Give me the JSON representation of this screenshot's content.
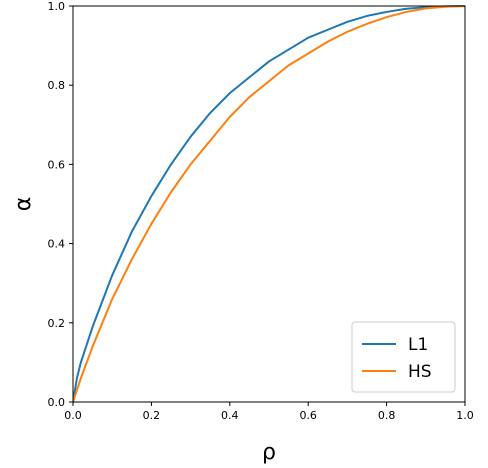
{
  "chart_data": {
    "type": "line",
    "title": "",
    "xlabel": "ρ",
    "ylabel": "α",
    "xlim": [
      0.0,
      1.0
    ],
    "ylim": [
      0.0,
      1.0
    ],
    "x_ticks": [
      "0.0",
      "0.2",
      "0.4",
      "0.6",
      "0.8",
      "1.0"
    ],
    "y_ticks": [
      "0.0",
      "0.2",
      "0.4",
      "0.6",
      "0.8",
      "1.0"
    ],
    "grid": false,
    "legend_position": "bottom-right",
    "series": [
      {
        "name": "L1",
        "color": "#1f77b4",
        "x": [
          0.0,
          0.01,
          0.02,
          0.05,
          0.1,
          0.15,
          0.2,
          0.25,
          0.3,
          0.35,
          0.4,
          0.45,
          0.5,
          0.55,
          0.6,
          0.65,
          0.7,
          0.75,
          0.8,
          0.85,
          0.9,
          0.95,
          1.0
        ],
        "y": [
          0.0,
          0.06,
          0.1,
          0.19,
          0.32,
          0.43,
          0.52,
          0.6,
          0.67,
          0.73,
          0.78,
          0.82,
          0.86,
          0.89,
          0.92,
          0.94,
          0.96,
          0.975,
          0.985,
          0.993,
          0.997,
          0.999,
          1.0
        ]
      },
      {
        "name": "HS",
        "color": "#ff7f0e",
        "x": [
          0.0,
          0.01,
          0.02,
          0.05,
          0.1,
          0.15,
          0.2,
          0.25,
          0.3,
          0.35,
          0.4,
          0.45,
          0.5,
          0.55,
          0.6,
          0.65,
          0.7,
          0.75,
          0.8,
          0.85,
          0.9,
          0.95,
          1.0
        ],
        "y": [
          0.0,
          0.03,
          0.06,
          0.14,
          0.26,
          0.36,
          0.45,
          0.53,
          0.6,
          0.66,
          0.72,
          0.77,
          0.81,
          0.85,
          0.88,
          0.91,
          0.935,
          0.955,
          0.972,
          0.985,
          0.994,
          0.998,
          1.0
        ]
      }
    ]
  }
}
